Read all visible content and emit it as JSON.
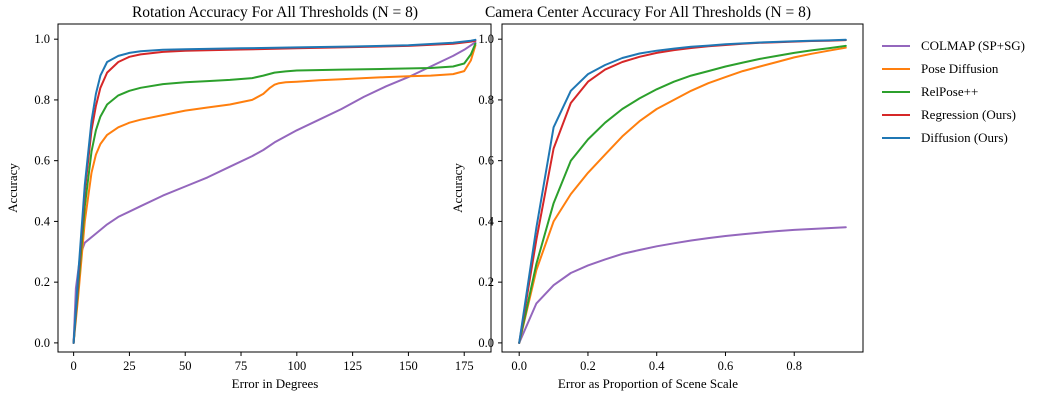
{
  "chart_data": [
    {
      "type": "line",
      "title": "Rotation Accuracy For All Thresholds (N = 8)",
      "xlabel": "Error in Degrees",
      "ylabel": "Accuracy",
      "xlim": [
        -7,
        187
      ],
      "ylim": [
        -0.03,
        1.05
      ],
      "xticks": [
        0,
        25,
        50,
        75,
        100,
        125,
        150,
        175
      ],
      "yticks": [
        0.0,
        0.2,
        0.4,
        0.6,
        0.8,
        1.0
      ],
      "xtick_labels": [
        "0",
        "25",
        "50",
        "75",
        "100",
        "125",
        "150",
        "175"
      ],
      "ytick_labels": [
        "0.0",
        "0.2",
        "0.4",
        "0.6",
        "0.8",
        "1.0"
      ],
      "grid": false,
      "series": [
        {
          "name": "COLMAP (SP+SG)",
          "color": "#9467bd",
          "x": [
            0,
            1,
            3,
            5,
            10,
            15,
            20,
            30,
            40,
            50,
            60,
            70,
            80,
            85,
            90,
            100,
            110,
            120,
            130,
            140,
            150,
            160,
            170,
            175,
            178,
            180
          ],
          "y": [
            0.0,
            0.18,
            0.29,
            0.33,
            0.36,
            0.39,
            0.415,
            0.45,
            0.485,
            0.515,
            0.545,
            0.58,
            0.615,
            0.635,
            0.66,
            0.7,
            0.735,
            0.77,
            0.81,
            0.845,
            0.875,
            0.91,
            0.945,
            0.965,
            0.98,
            0.99
          ]
        },
        {
          "name": "Pose Diffusion",
          "color": "#ff7f0e",
          "x": [
            0,
            2,
            5,
            8,
            10,
            12,
            15,
            20,
            25,
            30,
            40,
            50,
            60,
            70,
            80,
            85,
            88,
            90,
            92,
            95,
            100,
            110,
            120,
            130,
            140,
            150,
            160,
            170,
            175,
            178,
            180
          ],
          "y": [
            0.0,
            0.15,
            0.4,
            0.56,
            0.62,
            0.655,
            0.685,
            0.71,
            0.725,
            0.735,
            0.75,
            0.765,
            0.775,
            0.785,
            0.8,
            0.82,
            0.84,
            0.85,
            0.855,
            0.858,
            0.86,
            0.865,
            0.868,
            0.872,
            0.875,
            0.878,
            0.88,
            0.885,
            0.895,
            0.93,
            0.98
          ]
        },
        {
          "name": "RelPose++",
          "color": "#2ca02c",
          "x": [
            0,
            2,
            5,
            8,
            10,
            12,
            15,
            20,
            25,
            30,
            40,
            50,
            60,
            70,
            80,
            85,
            90,
            95,
            100,
            120,
            140,
            160,
            170,
            175,
            178,
            180
          ],
          "y": [
            0.0,
            0.18,
            0.45,
            0.63,
            0.7,
            0.745,
            0.785,
            0.815,
            0.83,
            0.84,
            0.852,
            0.858,
            0.862,
            0.866,
            0.872,
            0.88,
            0.89,
            0.894,
            0.897,
            0.9,
            0.902,
            0.905,
            0.91,
            0.92,
            0.95,
            0.985
          ]
        },
        {
          "name": "Regression (Ours)",
          "color": "#d62728",
          "x": [
            0,
            2,
            5,
            8,
            10,
            12,
            15,
            20,
            25,
            30,
            40,
            50,
            75,
            100,
            125,
            150,
            170,
            178,
            180
          ],
          "y": [
            0.0,
            0.2,
            0.5,
            0.7,
            0.78,
            0.84,
            0.89,
            0.925,
            0.942,
            0.95,
            0.958,
            0.962,
            0.966,
            0.97,
            0.974,
            0.978,
            0.985,
            0.992,
            0.995
          ]
        },
        {
          "name": "Diffusion (Ours)",
          "color": "#1f77b4",
          "x": [
            0,
            2,
            5,
            8,
            10,
            12,
            15,
            20,
            25,
            30,
            40,
            50,
            75,
            100,
            125,
            150,
            170,
            178,
            180
          ],
          "y": [
            0.0,
            0.22,
            0.52,
            0.73,
            0.82,
            0.88,
            0.925,
            0.945,
            0.955,
            0.96,
            0.965,
            0.967,
            0.97,
            0.973,
            0.976,
            0.98,
            0.988,
            0.995,
            0.998
          ]
        }
      ]
    },
    {
      "type": "line",
      "title": "Camera Center Accuracy For All Thresholds (N = 8)",
      "xlabel": "Error as Proportion of Scene Scale",
      "ylabel": "Accuracy",
      "xlim": [
        -0.05,
        1.0
      ],
      "ylim": [
        -0.03,
        1.05
      ],
      "xticks": [
        0.0,
        0.2,
        0.4,
        0.6,
        0.8
      ],
      "yticks": [
        0.0,
        0.2,
        0.4,
        0.6,
        0.8,
        1.0
      ],
      "xtick_labels": [
        "0.0",
        "0.2",
        "0.4",
        "0.6",
        "0.8"
      ],
      "ytick_labels": [
        "0.0",
        "0.2",
        "0.4",
        "0.6",
        "0.8",
        "1.0"
      ],
      "grid": false,
      "legend_position": "right",
      "series": [
        {
          "name": "COLMAP (SP+SG)",
          "color": "#9467bd",
          "x": [
            0.0,
            0.05,
            0.1,
            0.15,
            0.2,
            0.25,
            0.3,
            0.35,
            0.4,
            0.45,
            0.5,
            0.55,
            0.6,
            0.65,
            0.7,
            0.75,
            0.8,
            0.85,
            0.9,
            0.95
          ],
          "y": [
            0.0,
            0.13,
            0.19,
            0.23,
            0.255,
            0.275,
            0.293,
            0.306,
            0.318,
            0.328,
            0.337,
            0.345,
            0.352,
            0.358,
            0.363,
            0.368,
            0.372,
            0.375,
            0.378,
            0.381
          ]
        },
        {
          "name": "Pose Diffusion",
          "color": "#ff7f0e",
          "x": [
            0.0,
            0.05,
            0.1,
            0.15,
            0.2,
            0.25,
            0.3,
            0.35,
            0.4,
            0.45,
            0.5,
            0.55,
            0.6,
            0.65,
            0.7,
            0.75,
            0.8,
            0.85,
            0.9,
            0.95
          ],
          "y": [
            0.0,
            0.24,
            0.4,
            0.49,
            0.56,
            0.62,
            0.68,
            0.73,
            0.77,
            0.8,
            0.83,
            0.855,
            0.875,
            0.895,
            0.91,
            0.925,
            0.94,
            0.952,
            0.962,
            0.972
          ]
        },
        {
          "name": "RelPose++",
          "color": "#2ca02c",
          "x": [
            0.0,
            0.05,
            0.1,
            0.15,
            0.2,
            0.25,
            0.3,
            0.35,
            0.4,
            0.45,
            0.5,
            0.55,
            0.6,
            0.65,
            0.7,
            0.75,
            0.8,
            0.85,
            0.9,
            0.95
          ],
          "y": [
            0.0,
            0.26,
            0.46,
            0.6,
            0.67,
            0.725,
            0.77,
            0.805,
            0.835,
            0.86,
            0.88,
            0.895,
            0.91,
            0.923,
            0.935,
            0.945,
            0.955,
            0.963,
            0.97,
            0.978
          ]
        },
        {
          "name": "Regression (Ours)",
          "color": "#d62728",
          "x": [
            0.0,
            0.05,
            0.1,
            0.15,
            0.2,
            0.25,
            0.3,
            0.35,
            0.4,
            0.45,
            0.5,
            0.55,
            0.6,
            0.65,
            0.7,
            0.75,
            0.8,
            0.85,
            0.9,
            0.95
          ],
          "y": [
            0.0,
            0.34,
            0.64,
            0.79,
            0.86,
            0.9,
            0.925,
            0.942,
            0.955,
            0.964,
            0.971,
            0.977,
            0.981,
            0.985,
            0.988,
            0.99,
            0.992,
            0.994,
            0.995,
            0.997
          ]
        },
        {
          "name": "Diffusion (Ours)",
          "color": "#1f77b4",
          "x": [
            0.0,
            0.05,
            0.1,
            0.15,
            0.2,
            0.25,
            0.3,
            0.35,
            0.4,
            0.45,
            0.5,
            0.55,
            0.6,
            0.65,
            0.7,
            0.75,
            0.8,
            0.85,
            0.9,
            0.95
          ],
          "y": [
            0.0,
            0.38,
            0.71,
            0.83,
            0.885,
            0.915,
            0.938,
            0.953,
            0.962,
            0.969,
            0.975,
            0.979,
            0.983,
            0.986,
            0.989,
            0.991,
            0.993,
            0.995,
            0.996,
            0.998
          ]
        }
      ]
    }
  ],
  "legend": {
    "items": [
      {
        "label": "COLMAP (SP+SG)",
        "color": "#9467bd"
      },
      {
        "label": "Pose Diffusion",
        "color": "#ff7f0e"
      },
      {
        "label": "RelPose++",
        "color": "#2ca02c"
      },
      {
        "label": "Regression (Ours)",
        "color": "#d62728"
      },
      {
        "label": "Diffusion (Ours)",
        "color": "#1f77b4"
      }
    ]
  }
}
